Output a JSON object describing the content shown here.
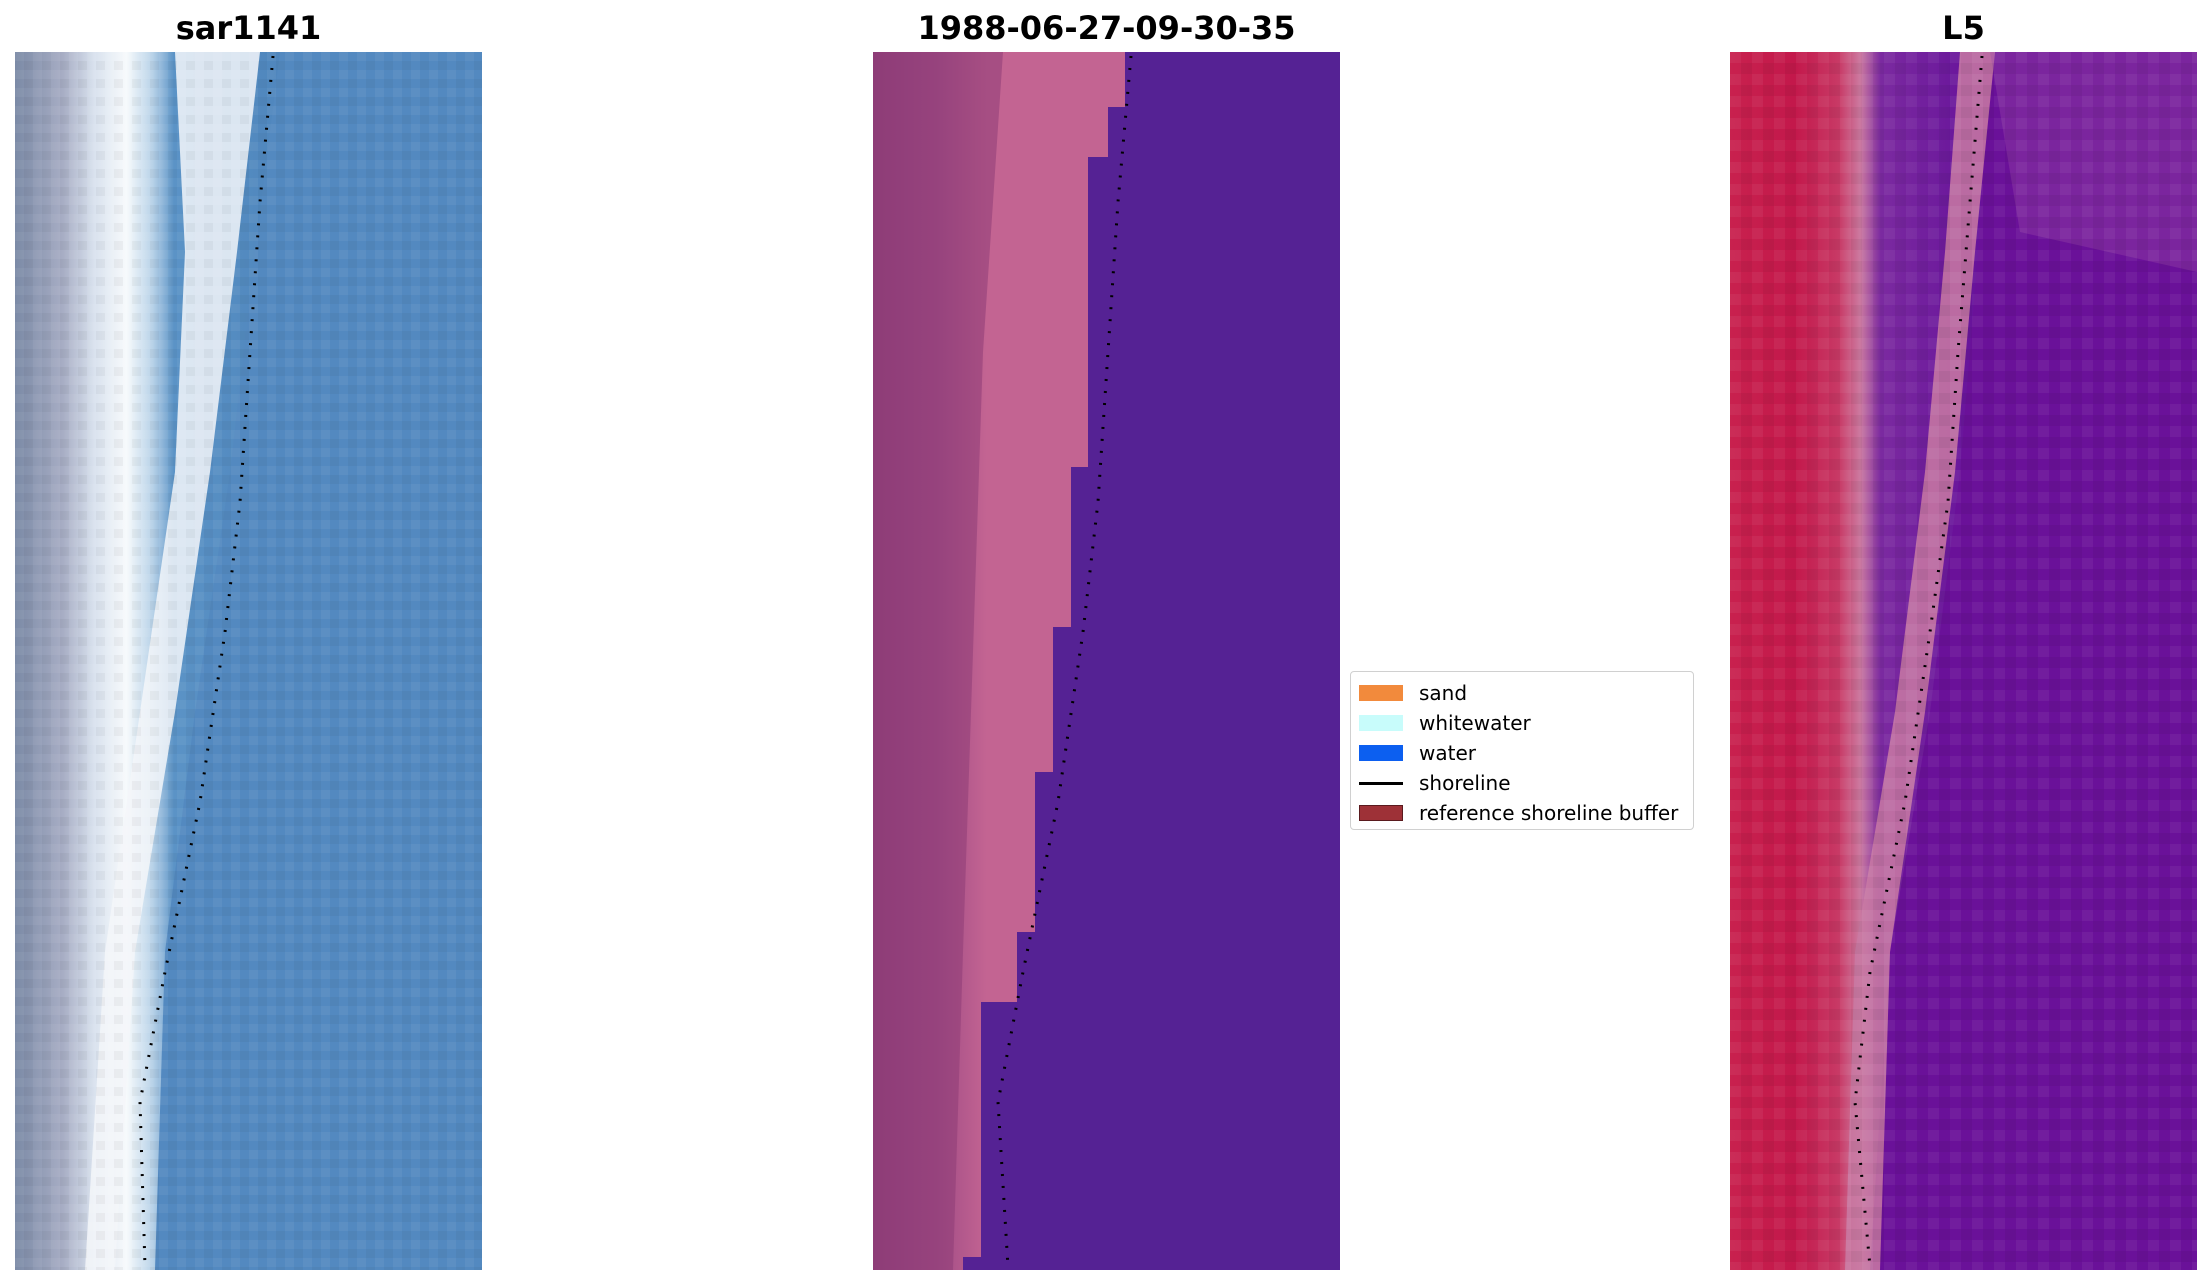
{
  "panels": [
    {
      "title": "sar1141",
      "image_description_icon": "satellite-rgb-image"
    },
    {
      "title": "1988-06-27-09-30-35",
      "image_description_icon": "classified-image"
    },
    {
      "title": "L5",
      "image_description_icon": "mndwi-image"
    }
  ],
  "legend": {
    "items": [
      {
        "label": "sand",
        "color": "#f28a3c"
      },
      {
        "label": "whitewater",
        "color": "#c8fcfb"
      },
      {
        "label": "water",
        "color": "#0c5ff0"
      },
      {
        "label": "shoreline",
        "color": "#000000"
      },
      {
        "label": "reference shoreline buffer",
        "color": "#9e3137"
      }
    ]
  },
  "colors": {
    "rgb_land": "#8f9fb5",
    "rgb_beach": "#f2f5f8",
    "rgb_water": "#5389c0",
    "class_land": "#98457f",
    "class_beach": "#c36492",
    "class_water": "#552294",
    "index_land": "#c3184b",
    "index_beach": "#c7709a",
    "index_water": "#6a1199"
  }
}
